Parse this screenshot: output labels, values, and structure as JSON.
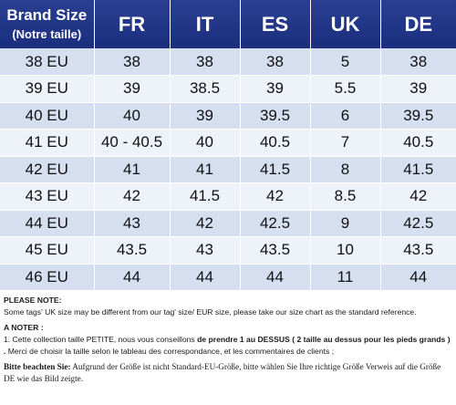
{
  "table": {
    "headers": {
      "brand": "Brand Size",
      "brand_sub": "(Notre taille)",
      "fr": "FR",
      "it": "IT",
      "es": "ES",
      "uk": "UK",
      "de": "DE"
    },
    "rows": [
      [
        "38 EU",
        "38",
        "38",
        "38",
        "5",
        "38"
      ],
      [
        "39 EU",
        "39",
        "38.5",
        "39",
        "5.5",
        "39"
      ],
      [
        "40 EU",
        "40",
        "39",
        "39.5",
        "6",
        "39.5"
      ],
      [
        "41 EU",
        "40 - 40.5",
        "40",
        "40.5",
        "7",
        "40.5"
      ],
      [
        "42 EU",
        "41",
        "41",
        "41.5",
        "8",
        "41.5"
      ],
      [
        "43 EU",
        "42",
        "41.5",
        "42",
        "8.5",
        "42"
      ],
      [
        "44 EU",
        "43",
        "42",
        "42.5",
        "9",
        "42.5"
      ],
      [
        "45 EU",
        "43.5",
        "43",
        "43.5",
        "10",
        "43.5"
      ],
      [
        "46 EU",
        "44",
        "44",
        "44",
        "11",
        "44"
      ]
    ]
  },
  "notes": {
    "en_head": "PLEASE NOTE:",
    "en_text": "Some tags' UK size  may be different from our tag' size/ EUR size, please take our size chart as the standard reference.",
    "fr_head": "A NOTER :",
    "fr_text_start": "1. Cette collection taille PETITE, nous vous conseillons ",
    "fr_text_bold": "de prendre 1 au DESSUS ( 2 taille au dessus pour les pieds grands ) .",
    "fr_text_end": "  Merci de choisir la taille selon le tableau des correspondance, et  les commentaires de clients ;",
    "de_head": "Bitte beachten Sie:",
    "de_text": " Aufgrund der Größe ist nicht Standard-EU-Größe, bitte wählen Sie Ihre richtige Größe Verweis auf die Größe DE wie das Bild zeigte."
  }
}
